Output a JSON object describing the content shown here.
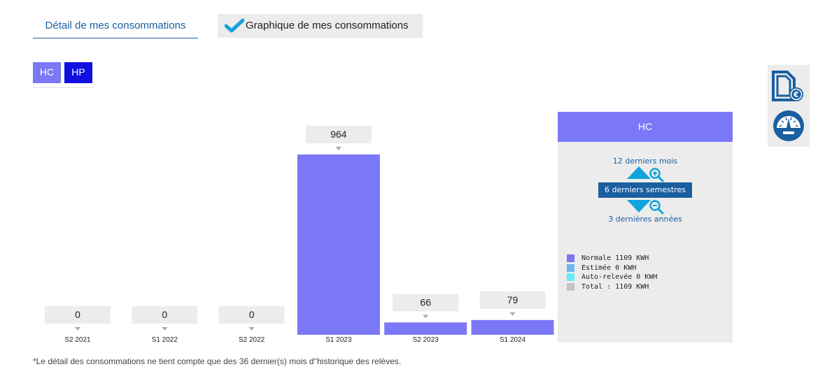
{
  "tabs": {
    "detail_label": "Détail de mes consommations",
    "graph_label": "Graphique de mes consommations"
  },
  "toggles": {
    "hc_label": "HC",
    "hp_label": "HP"
  },
  "colors": {
    "hc": "#7b78f7",
    "hp": "#1010e0",
    "accent_blue": "#1a5fa0",
    "cyan": "#11a3dc",
    "legend_normale": "#7b78f7",
    "legend_estimee": "#6bb8f0",
    "legend_auto": "#66eef0",
    "legend_total": "#c4c4c4"
  },
  "chart_data": {
    "type": "bar",
    "categories": [
      "S2 2021",
      "S1 2022",
      "S2 2022",
      "S1 2023",
      "S2 2023",
      "S1 2024"
    ],
    "values": [
      0,
      0,
      0,
      964,
      66,
      79
    ],
    "ylim": [
      0,
      1000
    ],
    "title": "",
    "xlabel": "",
    "ylabel": "",
    "grid": false
  },
  "panel": {
    "title": "HC",
    "zoom_in_label": "12 derniers mois",
    "current_period": "6 derniers semestres",
    "zoom_out_label": "3 dernières années",
    "legend": [
      {
        "label": "Normale 1109 KWH",
        "color": "#7b78f7"
      },
      {
        "label": "Estimée 0 KWH",
        "color": "#6bb8f0"
      },
      {
        "label": "Auto-relevée 0 KWH",
        "color": "#66eef0"
      },
      {
        "label": "Total : 1109 KWH",
        "color": "#c4c4c4"
      }
    ]
  },
  "side_icons": [
    "invoice-euro-icon",
    "meter-gauge-icon"
  ],
  "footnote": "*Le détail des consommations ne tient compte que des 36 dernier(s) mois d''historique des relèves."
}
